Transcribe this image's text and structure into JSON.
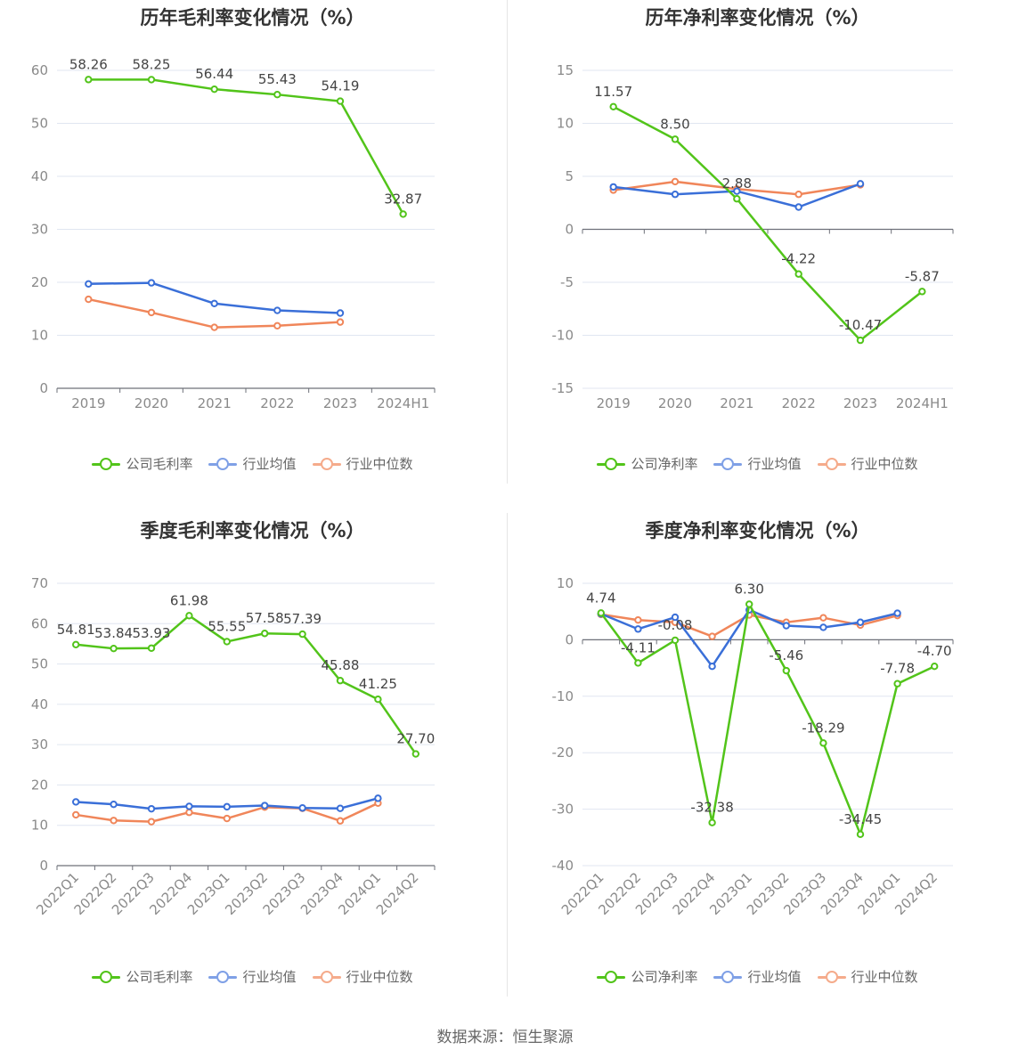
{
  "footer": {
    "source": "数据来源：恒生聚源"
  },
  "colors": {
    "company": "#52c41a",
    "avg": "#3a6fd8",
    "median": "#f0865a",
    "grid": "#e0e6f1",
    "axis": "#6e7079"
  },
  "charts": [
    {
      "title": "历年毛利率变化情况（%）",
      "legend": [
        "公司毛利率",
        "行业均值",
        "行业中位数"
      ]
    },
    {
      "title": "历年净利率变化情况（%）",
      "legend": [
        "公司净利率",
        "行业均值",
        "行业中位数"
      ]
    },
    {
      "title": "季度毛利率变化情况（%）",
      "legend": [
        "公司毛利率",
        "行业均值",
        "行业中位数"
      ]
    },
    {
      "title": "季度净利率变化情况（%）",
      "legend": [
        "公司净利率",
        "行业均值",
        "行业中位数"
      ]
    }
  ],
  "chart_data": [
    {
      "type": "line",
      "title": "历年毛利率变化情况（%）",
      "categories": [
        "2019",
        "2020",
        "2021",
        "2022",
        "2023",
        "2024H1"
      ],
      "ylim": [
        0,
        60
      ],
      "yticks": [
        0,
        10,
        20,
        30,
        40,
        50,
        60
      ],
      "grid": true,
      "legend_position": "bottom",
      "series": [
        {
          "name": "公司毛利率",
          "values": [
            58.26,
            58.25,
            56.44,
            55.43,
            54.19,
            32.87
          ],
          "labels": [
            "58.26",
            "58.25",
            "56.44",
            "55.43",
            "54.19",
            "32.87"
          ]
        },
        {
          "name": "行业均值",
          "values": [
            19.7,
            19.9,
            16.0,
            14.7,
            14.2,
            null
          ]
        },
        {
          "name": "行业中位数",
          "values": [
            16.8,
            14.3,
            11.5,
            11.8,
            12.5,
            null
          ]
        }
      ]
    },
    {
      "type": "line",
      "title": "历年净利率变化情况（%）",
      "categories": [
        "2019",
        "2020",
        "2021",
        "2022",
        "2023",
        "2024H1"
      ],
      "ylim": [
        -15,
        15
      ],
      "yticks": [
        -15,
        -10,
        -5,
        0,
        5,
        10,
        15
      ],
      "grid": true,
      "legend_position": "bottom",
      "series": [
        {
          "name": "公司净利率",
          "values": [
            11.57,
            8.5,
            2.88,
            -4.22,
            -10.47,
            -5.87
          ],
          "labels": [
            "11.57",
            "8.50",
            "2.88",
            "-4.22",
            "-10.47",
            "-5.87"
          ]
        },
        {
          "name": "行业均值",
          "values": [
            4.0,
            3.3,
            3.6,
            2.1,
            4.3,
            null
          ]
        },
        {
          "name": "行业中位数",
          "values": [
            3.7,
            4.5,
            3.8,
            3.3,
            4.2,
            null
          ]
        }
      ]
    },
    {
      "type": "line",
      "title": "季度毛利率变化情况（%）",
      "categories": [
        "2022Q1",
        "2022Q2",
        "2022Q3",
        "2022Q4",
        "2023Q1",
        "2023Q2",
        "2023Q3",
        "2023Q4",
        "2024Q1",
        "2024Q2"
      ],
      "ylim": [
        0,
        70
      ],
      "yticks": [
        0,
        10,
        20,
        30,
        40,
        50,
        60,
        70
      ],
      "grid": true,
      "legend_position": "bottom",
      "series": [
        {
          "name": "公司毛利率",
          "values": [
            54.81,
            53.84,
            53.93,
            61.98,
            55.55,
            57.58,
            57.39,
            45.88,
            41.25,
            27.7
          ],
          "labels": [
            "54.81",
            "53.84",
            "53.93",
            "61.98",
            "55.55",
            "57.58",
            "57.39",
            "45.88",
            "41.25",
            "27.70"
          ]
        },
        {
          "name": "行业均值",
          "values": [
            15.8,
            15.2,
            14.1,
            14.7,
            14.6,
            14.9,
            14.3,
            14.2,
            16.7,
            null
          ]
        },
        {
          "name": "行业中位数",
          "values": [
            12.6,
            11.2,
            10.9,
            13.2,
            11.7,
            14.5,
            14.2,
            11.1,
            15.5,
            null
          ]
        }
      ]
    },
    {
      "type": "line",
      "title": "季度净利率变化情况（%）",
      "categories": [
        "2022Q1",
        "2022Q2",
        "2022Q3",
        "2022Q4",
        "2023Q1",
        "2023Q2",
        "2023Q3",
        "2023Q4",
        "2024Q1",
        "2024Q2"
      ],
      "ylim": [
        -40,
        10
      ],
      "yticks": [
        -40,
        -30,
        -20,
        -10,
        0,
        10
      ],
      "grid": true,
      "legend_position": "bottom",
      "series": [
        {
          "name": "公司净利率",
          "values": [
            4.74,
            -4.11,
            -0.08,
            -32.38,
            6.3,
            -5.46,
            -18.29,
            -34.45,
            -7.78,
            -4.7
          ],
          "labels": [
            "4.74",
            "-4.11",
            "-0.08",
            "-32.38",
            "6.30",
            "-5.46",
            "-18.29",
            "-34.45",
            "-7.78",
            "-4.70"
          ]
        },
        {
          "name": "行业均值",
          "values": [
            4.6,
            1.9,
            4.0,
            -4.7,
            5.3,
            2.5,
            2.2,
            3.1,
            4.7,
            null
          ]
        },
        {
          "name": "行业中位数",
          "values": [
            4.5,
            3.5,
            3.1,
            0.6,
            4.4,
            3.1,
            3.9,
            2.6,
            4.3,
            null
          ]
        }
      ]
    }
  ]
}
